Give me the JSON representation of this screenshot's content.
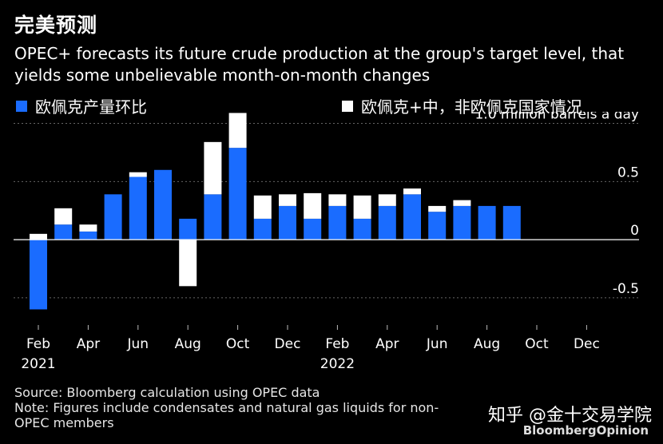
{
  "header": {
    "title": "完美预测",
    "subtitle": "OPEC+ forecasts its future crude production at the group's target level, that yields some unbelievable month-on-month changes"
  },
  "legend": [
    {
      "label": "欧佩克产量环比",
      "color": "#1a6cff"
    },
    {
      "label": "欧佩克+中，非欧佩克国家情况",
      "color": "#ffffff"
    }
  ],
  "footer": {
    "source": "Source: Bloomberg calculation using OPEC data",
    "note": "Note: Figures include condensates and natural gas liquids for non-OPEC members"
  },
  "watermark": "知乎 @金十交易学院",
  "brand": "BloombergOpinion",
  "chart_data": {
    "type": "bar",
    "stacked": true,
    "ylabel": "1.0 million barrels a day",
    "ylim": [
      -0.7,
      1.1
    ],
    "yticks": [
      {
        "value": 1.0,
        "label": "1.0 million barrels a day"
      },
      {
        "value": 0.5,
        "label": "0.5"
      },
      {
        "value": 0,
        "label": "0"
      },
      {
        "value": -0.5,
        "label": "-0.5"
      }
    ],
    "categories": [
      "Feb 2021",
      "Mar 2021",
      "Apr 2021",
      "May 2021",
      "Jun 2021",
      "Jul 2021",
      "Aug 2021",
      "Sep 2021",
      "Oct 2021",
      "Nov 2021",
      "Dec 2021",
      "Jan 2022",
      "Feb 2022",
      "Mar 2022",
      "Apr 2022",
      "May 2022",
      "Jun 2022",
      "Jul 2022",
      "Aug 2022",
      "Sep 2022",
      "Oct 2022",
      "Nov 2022",
      "Dec 2022"
    ],
    "x_tick_labels": [
      {
        "index": 0,
        "label": "Feb",
        "year": "2021"
      },
      {
        "index": 2,
        "label": "Apr"
      },
      {
        "index": 4,
        "label": "Jun"
      },
      {
        "index": 6,
        "label": "Aug"
      },
      {
        "index": 8,
        "label": "Oct"
      },
      {
        "index": 10,
        "label": "Dec"
      },
      {
        "index": 12,
        "label": "Feb",
        "year": "2022"
      },
      {
        "index": 14,
        "label": "Apr"
      },
      {
        "index": 16,
        "label": "Jun"
      },
      {
        "index": 18,
        "label": "Aug"
      },
      {
        "index": 20,
        "label": "Oct"
      },
      {
        "index": 22,
        "label": "Dec"
      }
    ],
    "series": [
      {
        "name": "欧佩克产量环比",
        "color": "#1a6cff",
        "values": [
          -0.6,
          0.13,
          0.07,
          0.39,
          0.54,
          0.6,
          0.18,
          0.39,
          0.79,
          0.18,
          0.29,
          0.18,
          0.29,
          0.18,
          0.29,
          0.39,
          0.24,
          0.29,
          0.29,
          0.29,
          null,
          null,
          null
        ]
      },
      {
        "name": "欧佩克+中，非欧佩克国家情况",
        "color": "#ffffff",
        "values": [
          0.05,
          0.14,
          0.06,
          0,
          0.04,
          0,
          -0.4,
          0.45,
          0.3,
          0.2,
          0.1,
          0.22,
          0.1,
          0.2,
          0.1,
          0.05,
          0.05,
          0.05,
          0,
          0,
          null,
          null,
          null
        ]
      }
    ]
  }
}
